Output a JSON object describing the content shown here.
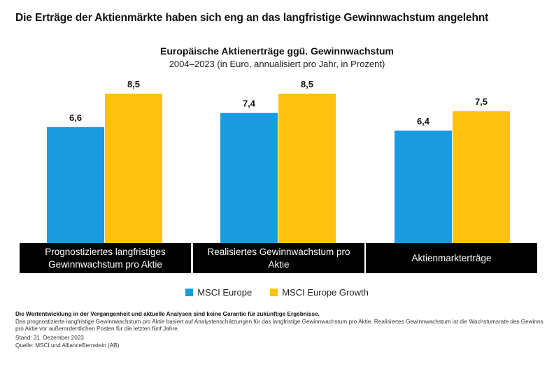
{
  "headline": "Die Erträge der Aktienmärkte haben sich eng an das langfristige Gewinnwachstum angelehnt",
  "chart_data": {
    "type": "bar",
    "title": "Europäische Aktienerträge ggü. Gewinnwachstum",
    "subtitle": "2004–2023 (in Euro, annualisiert pro Jahr, in Prozent)",
    "categories": [
      "Prognostiziertes langfristiges Gewinnwachstum pro Aktie",
      "Realisiertes Gewinnwachstum pro Aktie",
      "Aktienmarkterträge"
    ],
    "series": [
      {
        "name": "MSCI Europe",
        "values": [
          6.6,
          7.4,
          6.4
        ],
        "labels": [
          "6,6",
          "7,4",
          "6,4"
        ],
        "color": "#1a9be0"
      },
      {
        "name": "MSCI Europe Growth",
        "values": [
          8.5,
          8.5,
          7.5
        ],
        "labels": [
          "8,5",
          "8,5",
          "7,5"
        ],
        "color": "#ffc20e"
      }
    ],
    "xlabel": "",
    "ylabel": "",
    "ylim": [
      0,
      8.5
    ],
    "grid": false,
    "legend_position": "bottom"
  },
  "footnotes": {
    "disclaimer": "Die Wertentwicklung in der Vergangenheit und aktuelle Analysen sind keine Garantie für zukünftige Ergebnisse.",
    "note": "Das prognostizierte langfristige Gewinnwachstum pro Aktie basiert auf Analystenschätzungen für das langfristige Gewinnwachstum pro Aktie. Realisiertes Gewinnwachstum ist die Wachstumsrate des Gewinns pro Aktie vor außerordentlichen Posten für die letzten fünf Jahre.",
    "date": "Stand: 31. Dezember 2023",
    "source": "Quelle: MSCI und AllianceBernstein (AB)"
  }
}
